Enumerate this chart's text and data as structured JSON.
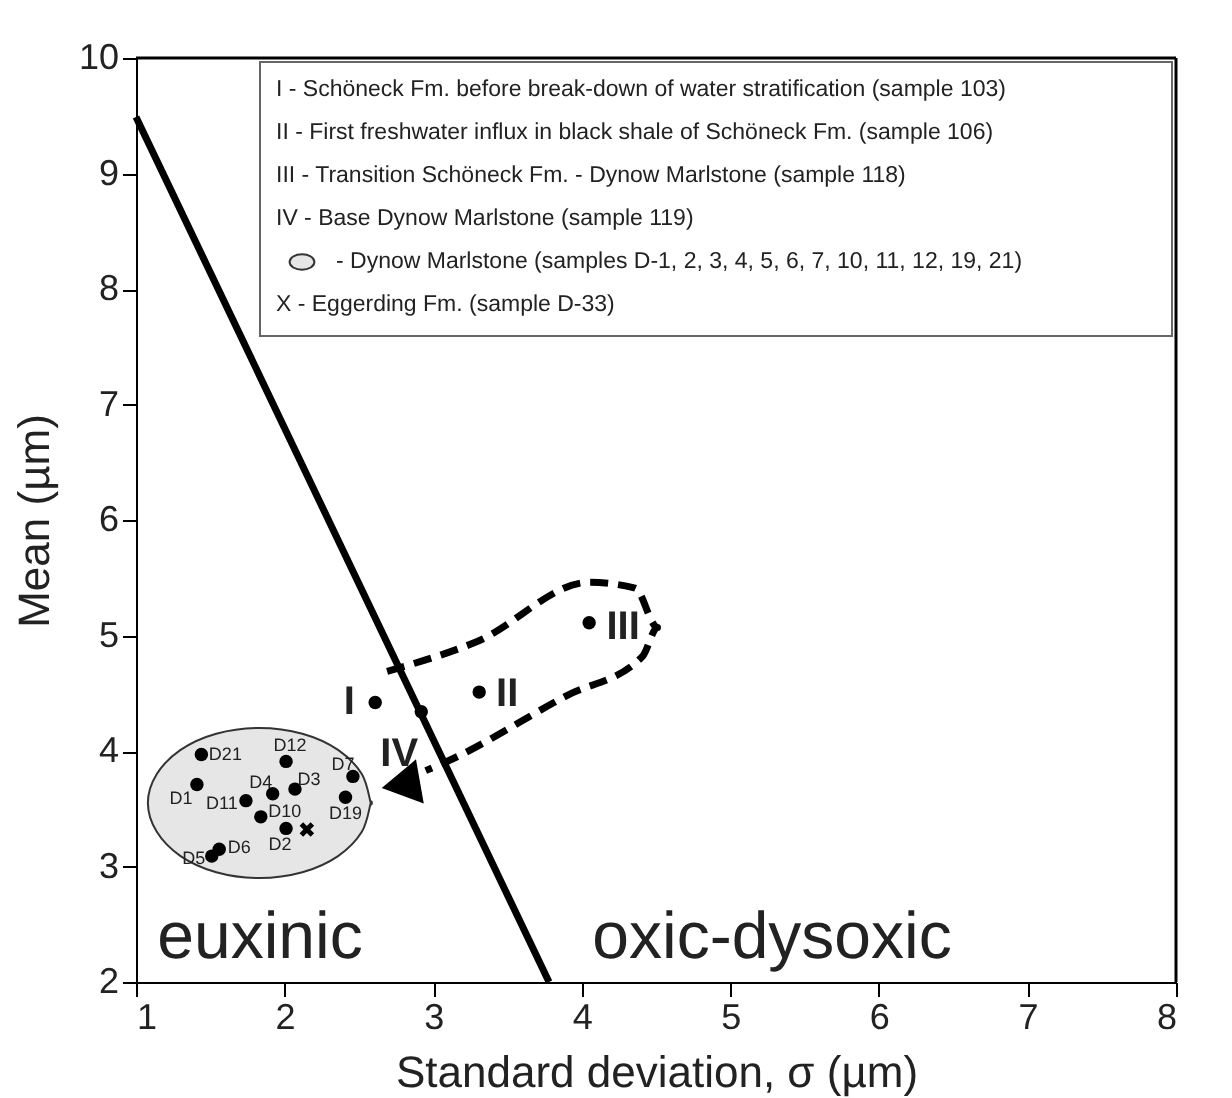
{
  "chart_data": {
    "type": "scatter",
    "xlabel": "Standard deviation, σ (µm)",
    "ylabel": "Mean (µm)",
    "xlim": [
      1,
      8
    ],
    "ylim": [
      2,
      10
    ],
    "xticks": [
      1,
      2,
      3,
      4,
      5,
      6,
      7,
      8
    ],
    "yticks": [
      2,
      3,
      4,
      5,
      6,
      7,
      8,
      9,
      10
    ],
    "grid": false,
    "series": [
      {
        "type": "area",
        "color": "#e6e6e6",
        "x": [
          2.58,
          2.52,
          2.36,
          2.12,
          1.83,
          1.54,
          1.3,
          1.14,
          1.08,
          1.14,
          1.3,
          1.54,
          1.83,
          2.12,
          2.36,
          2.52,
          2.58
        ],
        "values": [
          3.55,
          3.8,
          4.01,
          4.15,
          4.2,
          4.15,
          4.01,
          3.8,
          3.55,
          3.3,
          3.09,
          2.95,
          2.9,
          2.95,
          3.09,
          3.3,
          3.55
        ]
      },
      {
        "type": "line",
        "color": "#000000",
        "marker": "none",
        "line_style": "solid",
        "x": [
          1,
          3.78
        ],
        "values": [
          9.49,
          2
        ]
      },
      {
        "color": "#000000",
        "marker": "circle",
        "x": [
          2.61,
          3.31,
          4.05,
          2.92
        ],
        "values": [
          4.42,
          4.51,
          5.11,
          4.34
        ]
      },
      {
        "color": "#000000",
        "marker": "circle",
        "x": [
          1.44,
          1.41,
          2.01,
          1.92,
          2.07,
          2.46,
          2.41,
          1.74,
          1.84,
          2.01,
          1.56,
          1.51
        ],
        "values": [
          3.97,
          3.71,
          3.91,
          3.63,
          3.67,
          3.78,
          3.6,
          3.57,
          3.43,
          3.33,
          3.15,
          3.09
        ]
      },
      {
        "color": "#000000",
        "marker": "cross",
        "x": [
          2.15
        ],
        "values": [
          3.32
        ]
      }
    ],
    "annotations": [
      {
        "text": "I",
        "x": 2.61,
        "y": 4.42
      },
      {
        "text": "II",
        "x": 3.31,
        "y": 4.51
      },
      {
        "text": "III",
        "x": 4.05,
        "y": 5.11
      },
      {
        "text": "IV",
        "x": 2.92,
        "y": 4.34
      },
      {
        "text": "D21",
        "x": 1.44,
        "y": 3.97
      },
      {
        "text": "D1",
        "x": 1.41,
        "y": 3.71
      },
      {
        "text": "D12",
        "x": 2.01,
        "y": 3.91
      },
      {
        "text": "D4",
        "x": 1.92,
        "y": 3.63
      },
      {
        "text": "D3",
        "x": 2.07,
        "y": 3.67
      },
      {
        "text": "D7",
        "x": 2.46,
        "y": 3.78
      },
      {
        "text": "D19",
        "x": 2.41,
        "y": 3.6
      },
      {
        "text": "D11",
        "x": 1.74,
        "y": 3.57
      },
      {
        "text": "D10",
        "x": 1.84,
        "y": 3.43
      },
      {
        "text": "D2",
        "x": 2.01,
        "y": 3.33
      },
      {
        "text": "D6",
        "x": 1.56,
        "y": 3.15
      },
      {
        "text": "D5",
        "x": 1.51,
        "y": 3.09
      },
      "euxinic",
      "oxic-dysoxic",
      "I - Schöneck Fm. before break-down of water stratification (sample 103)",
      "II - First freshwater influx in black shale of  Schöneck Fm. (sample 106)",
      "III - Transition Schöneck Fm. - Dynow Marlstone (sample 118)",
      "IV - Base Dynow Marlstone (sample 119)",
      "- Dynow Marlstone (samples D-1, 2, 3, 4, 5, 6, 7, 10, 11, 12, 19, 21)",
      "X - Eggerding Fm. (sample D-33)"
    ]
  }
}
